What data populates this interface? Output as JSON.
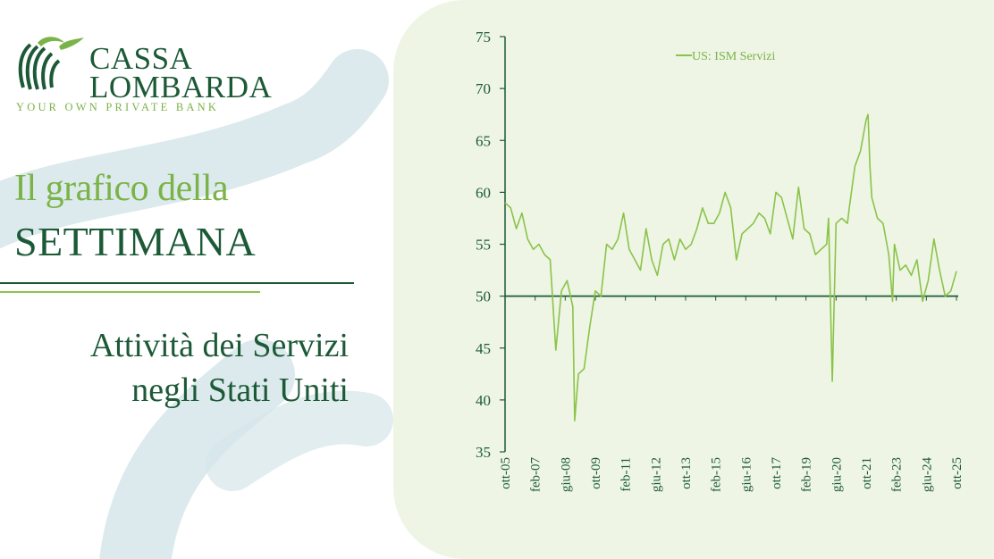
{
  "brand": {
    "name_line1": "CASSA",
    "name_line2": "LOMBARDA",
    "tagline": "YOUR OWN PRIVATE BANK"
  },
  "kicker": "Il grafico della",
  "headline": "SETTIMANA",
  "subtitle": {
    "line1": "Attività dei Servizi",
    "line2": "negli Stati Uniti"
  },
  "colors": {
    "dark_green": "#1c5a37",
    "light_green": "#7ab347",
    "series": "#8bc34a",
    "panel": "#eef5e4"
  },
  "chart_data": {
    "type": "line",
    "title": "",
    "xlabel": "",
    "ylabel": "",
    "ylim": [
      35,
      75
    ],
    "yticks": [
      35,
      40,
      45,
      50,
      55,
      60,
      65,
      70,
      75
    ],
    "xtick_labels": [
      "ott-05",
      "feb-07",
      "giu-08",
      "ott-09",
      "feb-11",
      "giu-12",
      "ott-13",
      "feb-15",
      "giu-16",
      "ott-17",
      "feb-19",
      "giu-20",
      "ott-21",
      "feb-23",
      "giu-24",
      "ott-25"
    ],
    "reference_line": 50,
    "legend": {
      "label": "US: ISM Servizi",
      "placement": "top-center"
    },
    "grid": false,
    "series": [
      {
        "name": "US: ISM Servizi",
        "x": [
          "2005-10",
          "2006-01",
          "2006-04",
          "2006-07",
          "2006-10",
          "2007-01",
          "2007-04",
          "2007-07",
          "2007-10",
          "2008-01",
          "2008-04",
          "2008-07",
          "2008-10",
          "2008-11",
          "2009-01",
          "2009-04",
          "2009-07",
          "2009-10",
          "2010-01",
          "2010-04",
          "2010-07",
          "2010-10",
          "2011-01",
          "2011-04",
          "2011-07",
          "2011-10",
          "2012-01",
          "2012-04",
          "2012-07",
          "2012-10",
          "2013-01",
          "2013-04",
          "2013-07",
          "2013-10",
          "2014-01",
          "2014-04",
          "2014-07",
          "2014-10",
          "2015-01",
          "2015-04",
          "2015-07",
          "2015-10",
          "2016-01",
          "2016-04",
          "2016-07",
          "2016-10",
          "2017-01",
          "2017-04",
          "2017-07",
          "2017-10",
          "2018-01",
          "2018-04",
          "2018-07",
          "2018-10",
          "2019-01",
          "2019-04",
          "2019-07",
          "2019-10",
          "2020-01",
          "2020-02",
          "2020-04",
          "2020-06",
          "2020-09",
          "2020-12",
          "2021-01",
          "2021-04",
          "2021-07",
          "2021-10",
          "2021-11",
          "2021-12",
          "2022-01",
          "2022-04",
          "2022-07",
          "2022-10",
          "2022-12",
          "2023-01",
          "2023-04",
          "2023-07",
          "2023-10",
          "2024-01",
          "2024-04",
          "2024-07",
          "2024-10",
          "2025-01",
          "2025-04",
          "2025-07",
          "2025-10"
        ],
        "y": [
          59.0,
          58.5,
          56.5,
          58.0,
          55.5,
          54.5,
          55.0,
          54.0,
          53.5,
          44.8,
          50.5,
          51.5,
          49.0,
          38.0,
          42.5,
          43.0,
          47.0,
          50.5,
          50.0,
          55.0,
          54.5,
          55.5,
          58.0,
          54.5,
          53.5,
          52.5,
          56.5,
          53.5,
          52.0,
          55.0,
          55.5,
          53.5,
          55.5,
          54.5,
          55.0,
          56.5,
          58.5,
          57.0,
          57.0,
          58.0,
          60.0,
          58.5,
          53.5,
          56.0,
          56.5,
          57.0,
          58.0,
          57.5,
          56.0,
          60.0,
          59.5,
          57.5,
          55.5,
          60.5,
          56.5,
          56.0,
          54.0,
          54.5,
          55.0,
          57.5,
          41.8,
          57.0,
          57.5,
          57.0,
          58.5,
          62.5,
          64.0,
          67.0,
          67.5,
          62.5,
          59.5,
          57.5,
          57.0,
          54.0,
          49.5,
          55.0,
          52.5,
          53.0,
          52.0,
          53.5,
          49.5,
          51.5,
          55.5,
          52.5,
          50.0,
          50.5,
          52.4
        ]
      }
    ]
  }
}
